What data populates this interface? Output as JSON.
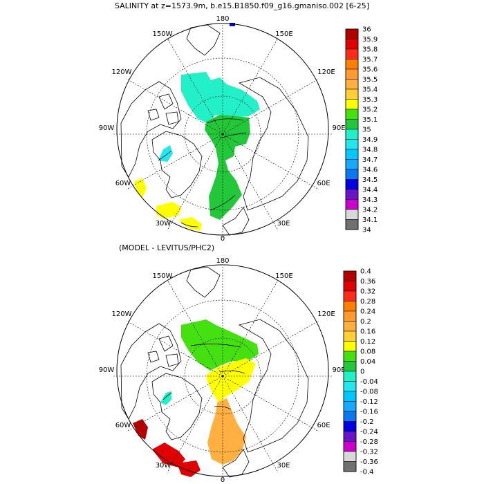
{
  "top_title": "SALINITY at z=1573.9m, b.e15.B1850.f09_g16.gmaniso.002 [6-25]",
  "bottom_title": "(MODEL - LEVITUS/PHC2)",
  "map_labels": {
    "lon_180": "180",
    "lon_150w": "150W",
    "lon_150e": "150E",
    "lon_120w": "120W",
    "lon_120e": "120E",
    "lon_90w": "90W",
    "lon_90e": "90E",
    "lon_60w": "60W",
    "lon_60e": "60E",
    "lon_30w": "30W",
    "lon_30e": "30E",
    "lon_0": "0"
  },
  "top_legend": {
    "labels": [
      "36",
      "35.9",
      "35.8",
      "35.7",
      "35.6",
      "35.5",
      "35.4",
      "35.3",
      "35.2",
      "35.1",
      "35",
      "34.9",
      "34.8",
      "34.7",
      "34.6",
      "34.5",
      "34.4",
      "34.3",
      "34.2",
      "34.1",
      "34"
    ],
    "colors": [
      "#b30000",
      "#e00000",
      "#ff2a1a",
      "#ff7f00",
      "#ff9a2e",
      "#ffb040",
      "#ffcf33",
      "#ffff00",
      "#45e010",
      "#22c83a",
      "#22f0c8",
      "#22e8ee",
      "#00c8ff",
      "#18a8ff",
      "#0a78f0",
      "#0000e0",
      "#6a14c8",
      "#cc00cc",
      "#d8d8d8",
      "#707070"
    ]
  },
  "bottom_legend": {
    "labels": [
      "0.4",
      "0.36",
      "0.32",
      "0.28",
      "0.24",
      "0.2",
      "0.16",
      "0.12",
      "0.08",
      "0.04",
      "0",
      "-0.04",
      "-0.08",
      "-0.12",
      "-0.16",
      "-0.2",
      "-0.24",
      "-0.28",
      "-0.32",
      "-0.36",
      "-0.4"
    ],
    "colors": [
      "#b30000",
      "#e00000",
      "#ff2a1a",
      "#ff7f00",
      "#ff9a2e",
      "#ffb040",
      "#ffcf33",
      "#ffff00",
      "#45e010",
      "#22c83a",
      "#22f0c8",
      "#22e8ee",
      "#00c8ff",
      "#18a8ff",
      "#0a78f0",
      "#0000e0",
      "#6a14c8",
      "#cc00cc",
      "#d8d8d8",
      "#707070"
    ]
  },
  "fields": {
    "top_pacific": "#22f0c8",
    "top_arctic": "#22c83a",
    "top_baffin": "#22e8ee",
    "top_atlantic": "#ffff00",
    "top_pole_patch": "#0000e0",
    "bottom_pacific": "#45e010",
    "bottom_eurasian": "#ffff00",
    "bottom_nordic": "#ffb040",
    "bottom_atlantic": "#e00000",
    "bottom_labrador": "#b30000",
    "bottom_baffin": "#22f0c8"
  }
}
